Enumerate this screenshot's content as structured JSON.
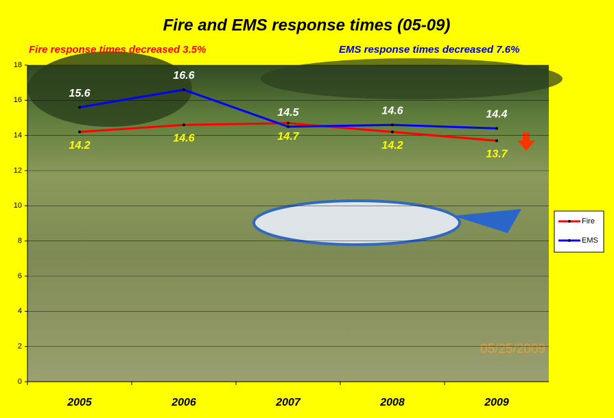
{
  "chart_data": {
    "type": "line",
    "title": "Fire and EMS response times (05-09)",
    "subtitles": [
      {
        "text": "Fire response times decreased  3.5%",
        "color": "#ff0000"
      },
      {
        "text": "EMS response times decreased 7.6%",
        "color": "#0000cc"
      }
    ],
    "categories": [
      "2005",
      "2006",
      "2007",
      "2008",
      "2009"
    ],
    "series": [
      {
        "name": "Fire",
        "color": "#ff0000",
        "label_color": "#ffff00",
        "values": [
          14.2,
          14.6,
          14.7,
          14.2,
          13.7
        ]
      },
      {
        "name": "EMS",
        "color": "#0000ff",
        "label_color": "#ffffff",
        "values": [
          15.6,
          16.6,
          14.5,
          14.6,
          14.4
        ]
      }
    ],
    "ylim": [
      0,
      18
    ],
    "yticks": [
      0,
      2,
      4,
      6,
      8,
      10,
      12,
      14,
      16,
      18
    ],
    "grid": true,
    "legend": "right",
    "photo_timestamp": "05/25/2009"
  }
}
